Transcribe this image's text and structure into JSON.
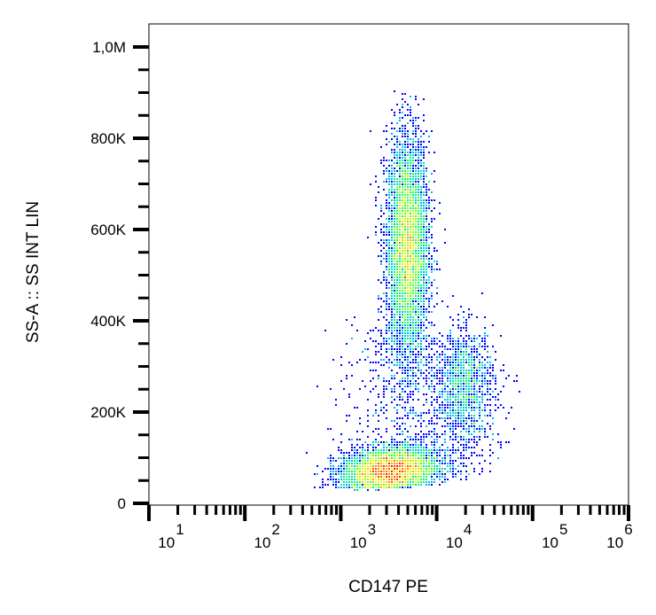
{
  "chart_data": {
    "type": "scatter",
    "subtype": "density-dot-plot",
    "xlabel": "CD147 PE",
    "ylabel": "SS-A :: SS INT LIN",
    "x_scale": "log",
    "xlim": [
      10,
      1000000
    ],
    "ylim": [
      0,
      1050000
    ],
    "x_ticks": [
      {
        "value": 10,
        "base": "10",
        "exp": "1"
      },
      {
        "value": 100,
        "base": "10",
        "exp": "2"
      },
      {
        "value": 1000,
        "base": "10",
        "exp": "3"
      },
      {
        "value": 10000,
        "base": "10",
        "exp": "4"
      },
      {
        "value": 100000,
        "base": "10",
        "exp": "5"
      },
      {
        "value": 1000000,
        "base": "10",
        "exp": "6"
      }
    ],
    "y_ticks": [
      {
        "value": 0,
        "label": "0"
      },
      {
        "value": 200000,
        "label": "200K"
      },
      {
        "value": 400000,
        "label": "400K"
      },
      {
        "value": 600000,
        "label": "600K"
      },
      {
        "value": 800000,
        "label": "800K"
      },
      {
        "value": 1000000,
        "label": "1,0M"
      }
    ],
    "grid": false,
    "legend": "none",
    "colormap": [
      "#0000ff",
      "#00c8ff",
      "#00ff60",
      "#ffff00",
      "#ff0000"
    ],
    "populations": [
      {
        "x_center": 5000,
        "y_center": 560000,
        "log_sd_x": 0.11,
        "sd_y": 120000,
        "count": 5200
      },
      {
        "x_center": 3200,
        "y_center": 70000,
        "log_sd_x": 0.25,
        "sd_y": 25000,
        "count": 4200
      },
      {
        "x_center": 20000,
        "y_center": 260000,
        "log_sd_x": 0.15,
        "sd_y": 60000,
        "count": 1100
      }
    ]
  }
}
